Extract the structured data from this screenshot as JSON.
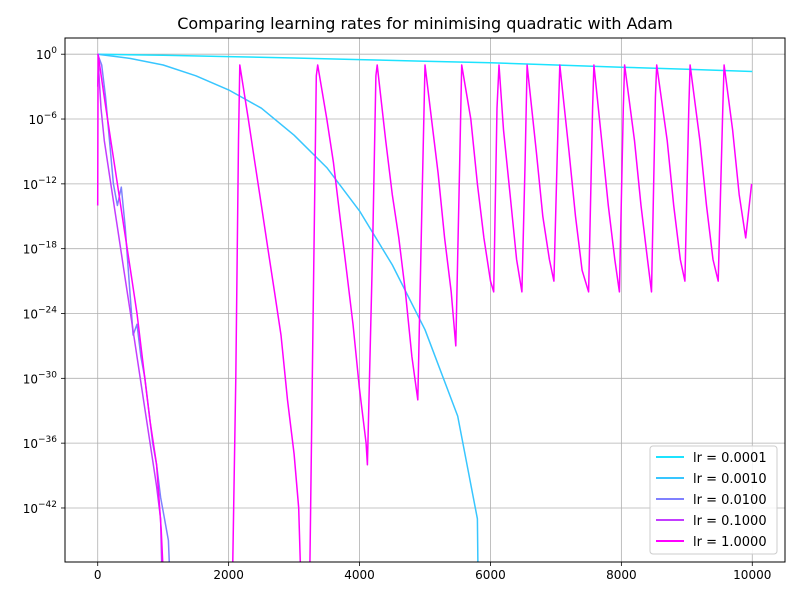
{
  "chart_data": {
    "type": "line",
    "title": "Comparing learning rates for minimising quadratic with Adam",
    "xlabel": "",
    "ylabel": "",
    "y_scale": "log",
    "grid": true,
    "legend_position": "lower-right",
    "xlim": [
      -500,
      10500
    ],
    "ylim_exponent": [
      -47,
      1.5
    ],
    "x_ticks": [
      0,
      2000,
      4000,
      6000,
      8000,
      10000
    ],
    "y_tick_exponents": [
      0,
      -6,
      -12,
      -18,
      -24,
      -30,
      -36,
      -42
    ],
    "series": [
      {
        "name": "lr = 0.0001",
        "color": "#1CE3FF",
        "points": [
          [
            0,
            0
          ],
          [
            1000,
            -0.1
          ],
          [
            2000,
            -0.22
          ],
          [
            3000,
            -0.35
          ],
          [
            4000,
            -0.5
          ],
          [
            5000,
            -0.65
          ],
          [
            6000,
            -0.8
          ],
          [
            7000,
            -1.0
          ],
          [
            8000,
            -1.2
          ],
          [
            9000,
            -1.4
          ],
          [
            10000,
            -1.6
          ]
        ]
      },
      {
        "name": "lr = 0.0010",
        "color": "#38C6FF",
        "points": [
          [
            0,
            0
          ],
          [
            500,
            -0.4
          ],
          [
            1000,
            -1.0
          ],
          [
            1500,
            -2.0
          ],
          [
            2000,
            -3.3
          ],
          [
            2500,
            -5.0
          ],
          [
            3000,
            -7.5
          ],
          [
            3500,
            -10.5
          ],
          [
            4000,
            -14.5
          ],
          [
            4500,
            -19.5
          ],
          [
            5000,
            -25.5
          ],
          [
            5500,
            -33.5
          ],
          [
            5800,
            -43.0
          ],
          [
            5810,
            -48
          ]
        ]
      },
      {
        "name": "lr = 0.0100",
        "color": "#7F80FF",
        "points": [
          [
            0,
            0
          ],
          [
            60,
            -1
          ],
          [
            120,
            -4
          ],
          [
            180,
            -8
          ],
          [
            240,
            -12
          ],
          [
            300,
            -14
          ],
          [
            360,
            -12.3
          ],
          [
            420,
            -16
          ],
          [
            480,
            -21
          ],
          [
            540,
            -26
          ],
          [
            600,
            -25
          ],
          [
            660,
            -28
          ],
          [
            720,
            -30
          ],
          [
            780,
            -33
          ],
          [
            840,
            -36
          ],
          [
            900,
            -38
          ],
          [
            960,
            -41
          ],
          [
            1020,
            -43
          ],
          [
            1080,
            -45
          ],
          [
            1100,
            -48
          ]
        ]
      },
      {
        "name": "lr = 0.1000",
        "color": "#C33CFF",
        "points": [
          [
            0,
            -3
          ],
          [
            10,
            -1
          ],
          [
            50,
            -5
          ],
          [
            100,
            -8
          ],
          [
            200,
            -12
          ],
          [
            300,
            -16
          ],
          [
            400,
            -20
          ],
          [
            500,
            -24
          ],
          [
            600,
            -28
          ],
          [
            700,
            -32
          ],
          [
            800,
            -36
          ],
          [
            900,
            -40
          ],
          [
            960,
            -43
          ],
          [
            980,
            -48
          ]
        ]
      },
      {
        "name": "lr = 1.0000",
        "color": "#FF00FF",
        "points": [
          [
            0,
            -14
          ],
          [
            5,
            0
          ],
          [
            100,
            -4
          ],
          [
            200,
            -8
          ],
          [
            300,
            -12
          ],
          [
            400,
            -16
          ],
          [
            500,
            -20
          ],
          [
            600,
            -24
          ],
          [
            700,
            -29
          ],
          [
            800,
            -34
          ],
          [
            900,
            -38
          ],
          [
            970,
            -44
          ],
          [
            1000,
            -48
          ],
          [
            2060,
            -48
          ],
          [
            2110,
            -30
          ],
          [
            2150,
            -8
          ],
          [
            2170,
            -1
          ],
          [
            2300,
            -6
          ],
          [
            2400,
            -10
          ],
          [
            2500,
            -14
          ],
          [
            2600,
            -18
          ],
          [
            2700,
            -22
          ],
          [
            2800,
            -26
          ],
          [
            2900,
            -32
          ],
          [
            3000,
            -37
          ],
          [
            3070,
            -42
          ],
          [
            3100,
            -48
          ],
          [
            3240,
            -48
          ],
          [
            3300,
            -20
          ],
          [
            3340,
            -2
          ],
          [
            3360,
            -1
          ],
          [
            3500,
            -6
          ],
          [
            3600,
            -10
          ],
          [
            3700,
            -15
          ],
          [
            3800,
            -20
          ],
          [
            3900,
            -25
          ],
          [
            4000,
            -31
          ],
          [
            4100,
            -36
          ],
          [
            4120,
            -38
          ],
          [
            4200,
            -18
          ],
          [
            4250,
            -2
          ],
          [
            4270,
            -1
          ],
          [
            4400,
            -8
          ],
          [
            4500,
            -13
          ],
          [
            4600,
            -17
          ],
          [
            4700,
            -22
          ],
          [
            4800,
            -28
          ],
          [
            4890,
            -32
          ],
          [
            4950,
            -15
          ],
          [
            5000,
            -1
          ],
          [
            5100,
            -6
          ],
          [
            5200,
            -11
          ],
          [
            5300,
            -17
          ],
          [
            5400,
            -22
          ],
          [
            5470,
            -27
          ],
          [
            5530,
            -10
          ],
          [
            5560,
            -1
          ],
          [
            5700,
            -6
          ],
          [
            5800,
            -12
          ],
          [
            5900,
            -17
          ],
          [
            6000,
            -21
          ],
          [
            6050,
            -22
          ],
          [
            6100,
            -5
          ],
          [
            6130,
            -1
          ],
          [
            6200,
            -7
          ],
          [
            6300,
            -13
          ],
          [
            6400,
            -19
          ],
          [
            6480,
            -22
          ],
          [
            6530,
            -10
          ],
          [
            6560,
            -1
          ],
          [
            6700,
            -9
          ],
          [
            6800,
            -15
          ],
          [
            6900,
            -19
          ],
          [
            6970,
            -21
          ],
          [
            7040,
            -5
          ],
          [
            7060,
            -1
          ],
          [
            7200,
            -9
          ],
          [
            7300,
            -15
          ],
          [
            7400,
            -20
          ],
          [
            7500,
            -22
          ],
          [
            7560,
            -5
          ],
          [
            7580,
            -1
          ],
          [
            7700,
            -8
          ],
          [
            7800,
            -14
          ],
          [
            7900,
            -19
          ],
          [
            7970,
            -22
          ],
          [
            8030,
            -5
          ],
          [
            8050,
            -1
          ],
          [
            8200,
            -8
          ],
          [
            8300,
            -14
          ],
          [
            8400,
            -19
          ],
          [
            8460,
            -22
          ],
          [
            8520,
            -4
          ],
          [
            8540,
            -1
          ],
          [
            8700,
            -8
          ],
          [
            8800,
            -14
          ],
          [
            8900,
            -19
          ],
          [
            8970,
            -21
          ],
          [
            9030,
            -5
          ],
          [
            9050,
            -1
          ],
          [
            9200,
            -8
          ],
          [
            9300,
            -14
          ],
          [
            9400,
            -19
          ],
          [
            9480,
            -21
          ],
          [
            9550,
            -5
          ],
          [
            9570,
            -1
          ],
          [
            9700,
            -7
          ],
          [
            9800,
            -13
          ],
          [
            9900,
            -17
          ],
          [
            9990,
            -12
          ]
        ]
      }
    ]
  }
}
